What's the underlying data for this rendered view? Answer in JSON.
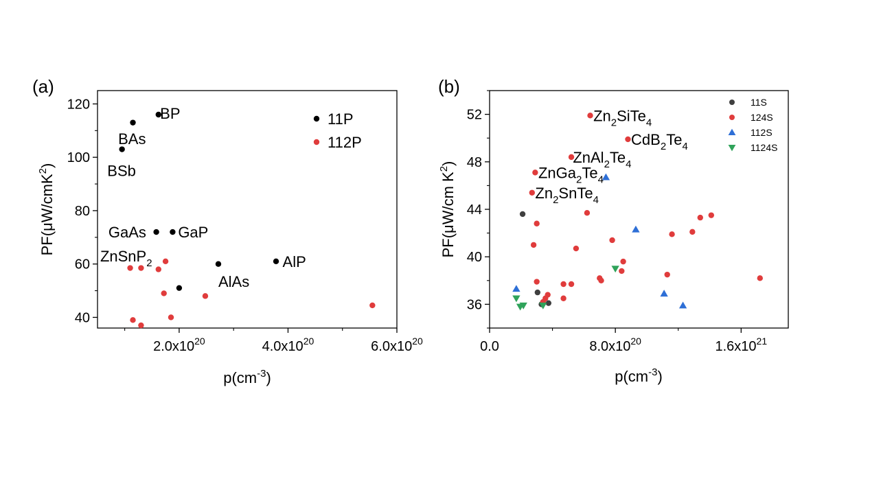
{
  "chart_data": [
    {
      "type": "scatter",
      "panel_label": "(a)",
      "xlabel": {
        "base": "p(cm",
        "sup": "-3",
        "end": ")"
      },
      "ylabel": {
        "base": "PF(μW/cmK",
        "sup": "2",
        "end": ")"
      },
      "xlim": [
        50000000000000000000,
        600000000000000000000
      ],
      "ylim": [
        36,
        125
      ],
      "x_ticks": [
        {
          "value": 200000000000000000000,
          "mant": "2.0x10",
          "exp": "20"
        },
        {
          "value": 400000000000000000000,
          "mant": "4.0x10",
          "exp": "20"
        },
        {
          "value": 600000000000000000000,
          "mant": "6.0x10",
          "exp": "20"
        }
      ],
      "x_minor_ticks": [
        100000000000000000000,
        300000000000000000000,
        500000000000000000000
      ],
      "y_ticks": [
        40,
        60,
        80,
        100,
        120
      ],
      "y_minor_ticks": [
        50,
        70,
        90,
        110
      ],
      "legend_position": "top-right",
      "series": [
        {
          "name": "11P",
          "color": "#000000",
          "marker": "circle",
          "points": [
            {
              "x": 115000000000000000000,
              "y": 113
            },
            {
              "x": 162000000000000000000,
              "y": 116
            },
            {
              "x": 95000000000000000000,
              "y": 103
            },
            {
              "x": 158000000000000000000,
              "y": 72
            },
            {
              "x": 188000000000000000000,
              "y": 72
            },
            {
              "x": 200000000000000000000,
              "y": 51
            },
            {
              "x": 272000000000000000000,
              "y": 60
            },
            {
              "x": 378000000000000000000,
              "y": 61
            }
          ]
        },
        {
          "name": "112P",
          "color": "#e03c3c",
          "marker": "circle",
          "points": [
            {
              "x": 110000000000000000000,
              "y": 58.5
            },
            {
              "x": 130000000000000000000,
              "y": 58.5
            },
            {
              "x": 162000000000000000000,
              "y": 58
            },
            {
              "x": 175000000000000000000,
              "y": 61
            },
            {
              "x": 172000000000000000000,
              "y": 49
            },
            {
              "x": 248000000000000000000,
              "y": 48
            },
            {
              "x": 115000000000000000000,
              "y": 39
            },
            {
              "x": 130000000000000000000,
              "y": 37
            },
            {
              "x": 185000000000000000000,
              "y": 40
            },
            {
              "x": 555000000000000000000,
              "y": 44.5
            }
          ]
        }
      ],
      "annotations": [
        {
          "parts": [
            {
              "t": "BP"
            }
          ],
          "x": 165000000000000000000,
          "y": 116.5
        },
        {
          "parts": [
            {
              "t": "BAs"
            }
          ],
          "x": 88000000000000000000,
          "y": 107
        },
        {
          "parts": [
            {
              "t": "BSb"
            }
          ],
          "x": 68000000000000000000,
          "y": 95
        },
        {
          "parts": [
            {
              "t": "GaAs"
            }
          ],
          "x": 70000000000000000000,
          "y": 72
        },
        {
          "parts": [
            {
              "t": "GaP"
            }
          ],
          "x": 198000000000000000000,
          "y": 72
        },
        {
          "parts": [
            {
              "t": "ZnSnP"
            },
            {
              "t": "2",
              "sub": true
            }
          ],
          "x": 55000000000000000000,
          "y": 63
        },
        {
          "parts": [
            {
              "t": "AlAs"
            }
          ],
          "x": 272000000000000000000,
          "y": 53.5
        },
        {
          "parts": [
            {
              "t": "AlP"
            }
          ],
          "x": 390000000000000000000,
          "y": 61
        }
      ]
    },
    {
      "type": "scatter",
      "panel_label": "(b)",
      "xlabel": {
        "base": "p(cm",
        "sup": "-3",
        "end": ")"
      },
      "ylabel": {
        "base": "PF(μW/cm K",
        "sup": "2",
        "end": ")"
      },
      "xlim": [
        0,
        1900000000000000000000
      ],
      "ylim": [
        34,
        54
      ],
      "x_ticks": [
        {
          "value": 0,
          "mant": "0.0",
          "exp": ""
        },
        {
          "value": 800000000000000000000,
          "mant": "8.0x10",
          "exp": "20"
        },
        {
          "value": 1600000000000000000000,
          "mant": "1.6x10",
          "exp": "21"
        }
      ],
      "x_minor_ticks": [
        400000000000000000000,
        1200000000000000000000
      ],
      "y_ticks": [
        36,
        40,
        44,
        48,
        52
      ],
      "y_minor_ticks": [
        34,
        38,
        42,
        46,
        50,
        54
      ],
      "legend_position": "top-right",
      "series": [
        {
          "name": "11S",
          "color": "#3f3f3f",
          "marker": "circle",
          "points": [
            {
              "x": 210000000000000000000,
              "y": 43.6
            },
            {
              "x": 305000000000000000000,
              "y": 37
            },
            {
              "x": 330000000000000000000,
              "y": 36
            },
            {
              "x": 375000000000000000000,
              "y": 36.1
            }
          ]
        },
        {
          "name": "124S",
          "color": "#e03c3c",
          "marker": "circle",
          "points": [
            {
              "x": 640000000000000000000,
              "y": 51.9
            },
            {
              "x": 880000000000000000000,
              "y": 49.9
            },
            {
              "x": 520000000000000000000,
              "y": 48.4
            },
            {
              "x": 290000000000000000000,
              "y": 47.1
            },
            {
              "x": 270000000000000000000,
              "y": 45.4
            },
            {
              "x": 300000000000000000000,
              "y": 42.8
            },
            {
              "x": 280000000000000000000,
              "y": 41
            },
            {
              "x": 300000000000000000000,
              "y": 37.9
            },
            {
              "x": 340000000000000000000,
              "y": 36.2
            },
            {
              "x": 355000000000000000000,
              "y": 36.5
            },
            {
              "x": 370000000000000000000,
              "y": 36.8
            },
            {
              "x": 620000000000000000000,
              "y": 43.7
            },
            {
              "x": 550000000000000000000,
              "y": 40.7
            },
            {
              "x": 470000000000000000000,
              "y": 37.7
            },
            {
              "x": 520000000000000000000,
              "y": 37.7
            },
            {
              "x": 470000000000000000000,
              "y": 36.5
            },
            {
              "x": 700000000000000000000,
              "y": 38.2
            },
            {
              "x": 710000000000000000000,
              "y": 38
            },
            {
              "x": 780000000000000000000,
              "y": 41.4
            },
            {
              "x": 850000000000000000000,
              "y": 39.6
            },
            {
              "x": 840000000000000000000,
              "y": 38.8
            },
            {
              "x": 1130000000000000000000,
              "y": 38.5
            },
            {
              "x": 1160000000000000000000,
              "y": 41.9
            },
            {
              "x": 1290000000000000000000,
              "y": 42.1
            },
            {
              "x": 1340000000000000000000,
              "y": 43.3
            },
            {
              "x": 1410000000000000000000,
              "y": 43.5
            },
            {
              "x": 1720000000000000000000,
              "y": 38.2
            }
          ]
        },
        {
          "name": "112S",
          "color": "#2e6fd6",
          "marker": "triangle-up",
          "points": [
            {
              "x": 740000000000000000000,
              "y": 46.7
            },
            {
              "x": 930000000000000000000,
              "y": 42.3
            },
            {
              "x": 1110000000000000000000,
              "y": 36.9
            },
            {
              "x": 1230000000000000000000,
              "y": 35.9
            },
            {
              "x": 170000000000000000000,
              "y": 37.3
            }
          ]
        },
        {
          "name": "1124S",
          "color": "#2fa35a",
          "marker": "triangle-down",
          "points": [
            {
              "x": 170000000000000000000,
              "y": 36.5
            },
            {
              "x": 195000000000000000000,
              "y": 35.8
            },
            {
              "x": 215000000000000000000,
              "y": 35.9
            },
            {
              "x": 340000000000000000000,
              "y": 35.9
            },
            {
              "x": 800000000000000000000,
              "y": 39
            }
          ]
        }
      ],
      "annotations": [
        {
          "parts": [
            {
              "t": "Zn"
            },
            {
              "t": "2",
              "sub": true
            },
            {
              "t": "SiTe"
            },
            {
              "t": "4",
              "sub": true
            }
          ],
          "x": 660000000000000000000,
          "y": 51.9
        },
        {
          "parts": [
            {
              "t": "CdB"
            },
            {
              "t": "2",
              "sub": true
            },
            {
              "t": "Te"
            },
            {
              "t": "4",
              "sub": true
            }
          ],
          "x": 900000000000000000000,
          "y": 49.9
        },
        {
          "parts": [
            {
              "t": "ZnAl"
            },
            {
              "t": "2",
              "sub": true
            },
            {
              "t": "Te"
            },
            {
              "t": "4",
              "sub": true
            }
          ],
          "x": 530000000000000000000,
          "y": 48.4
        },
        {
          "parts": [
            {
              "t": "ZnGa"
            },
            {
              "t": "2",
              "sub": true
            },
            {
              "t": "Te"
            },
            {
              "t": "4",
              "sub": true
            }
          ],
          "x": 310000000000000000000,
          "y": 47.1
        },
        {
          "parts": [
            {
              "t": "Zn"
            },
            {
              "t": "2",
              "sub": true
            },
            {
              "t": "SnTe"
            },
            {
              "t": "4",
              "sub": true
            }
          ],
          "x": 290000000000000000000,
          "y": 45.4
        }
      ]
    }
  ]
}
